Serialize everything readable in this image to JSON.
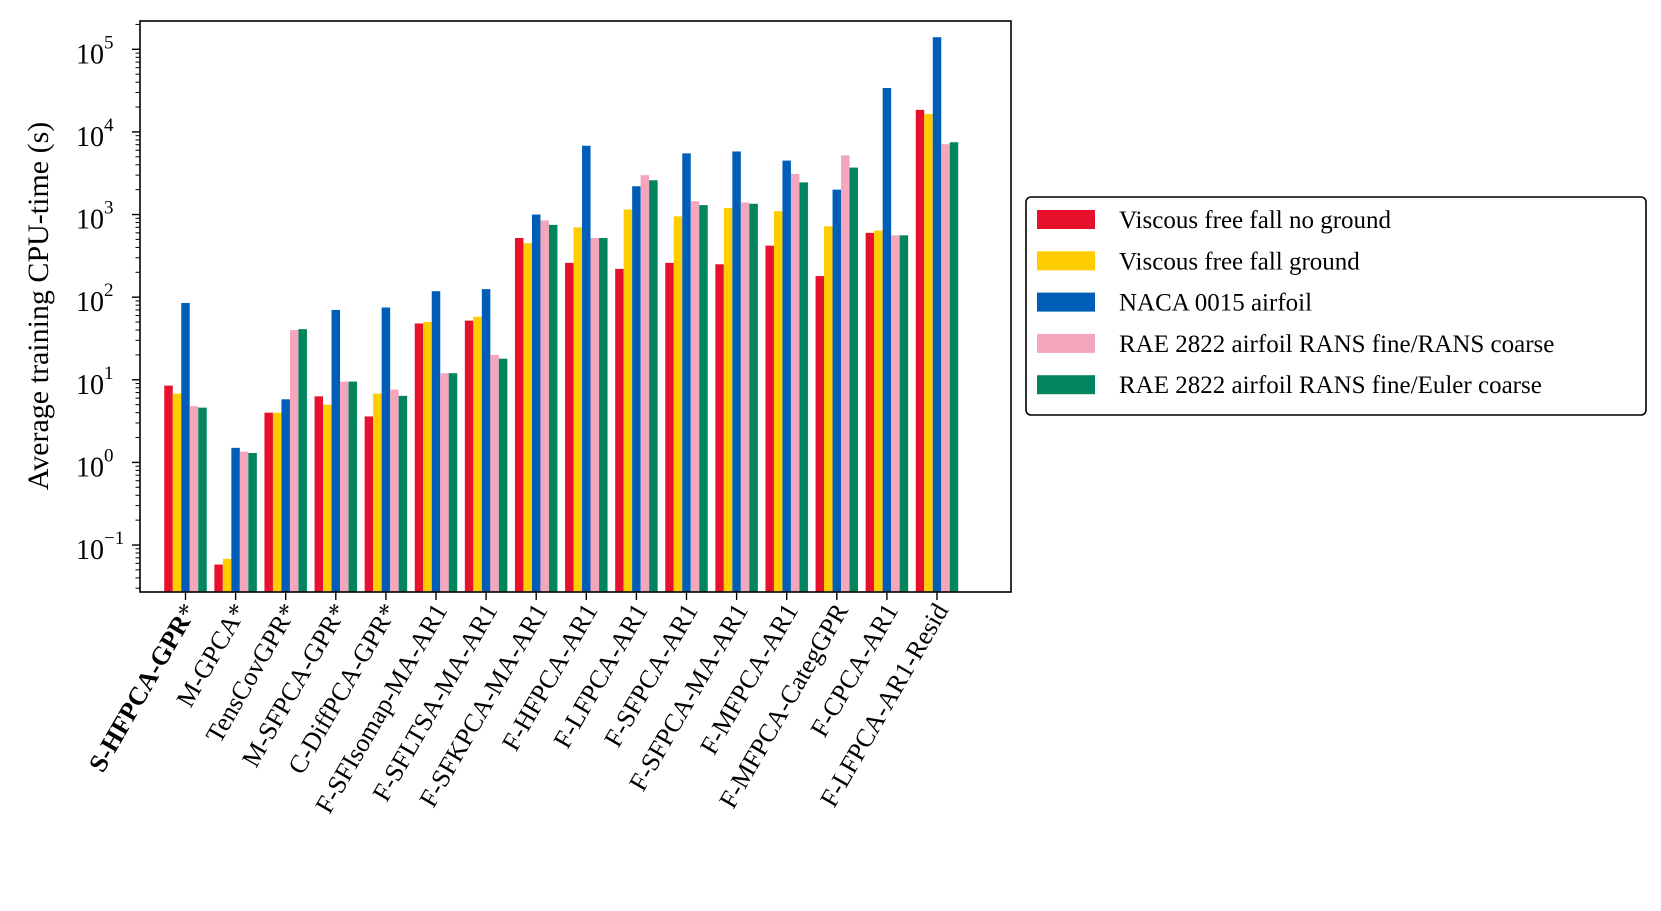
{
  "chart_data": {
    "type": "bar",
    "scale": "log",
    "title": "",
    "xlabel": "",
    "ylabel": "Average training CPU-time (s)",
    "ylim": [
      0.027,
      220000
    ],
    "yticks": [
      {
        "value": 0.1,
        "base": "10",
        "exp": "−1"
      },
      {
        "value": 1,
        "base": "10",
        "exp": "0"
      },
      {
        "value": 10,
        "base": "10",
        "exp": "1"
      },
      {
        "value": 100,
        "base": "10",
        "exp": "2"
      },
      {
        "value": 1000,
        "base": "10",
        "exp": "3"
      },
      {
        "value": 10000,
        "base": "10",
        "exp": "4"
      },
      {
        "value": 100000,
        "base": "10",
        "exp": "5"
      }
    ],
    "categories": [
      {
        "label": "S-HFPCA-GPR",
        "suffix": "*",
        "bold": true
      },
      {
        "label": "M-GPCA",
        "suffix": "*",
        "bold": false
      },
      {
        "label": "TensCovGPR",
        "suffix": "*",
        "bold": false
      },
      {
        "label": "M-SFPCA-GPR",
        "suffix": "*",
        "bold": false
      },
      {
        "label": "C-DiffPCA-GPR",
        "suffix": "*",
        "bold": false
      },
      {
        "label": "F-SFIsomap-MA-AR1",
        "suffix": "",
        "bold": false
      },
      {
        "label": "F-SFLTSA-MA-AR1",
        "suffix": "",
        "bold": false
      },
      {
        "label": "F-SFKPCA-MA-AR1",
        "suffix": "",
        "bold": false
      },
      {
        "label": "F-HFPCA-AR1",
        "suffix": "",
        "bold": false
      },
      {
        "label": "F-LFPCA-AR1",
        "suffix": "",
        "bold": false
      },
      {
        "label": "F-SFPCA-AR1",
        "suffix": "",
        "bold": false
      },
      {
        "label": "F-SFPCA-MA-AR1",
        "suffix": "",
        "bold": false
      },
      {
        "label": "F-MFPCA-AR1",
        "suffix": "",
        "bold": false
      },
      {
        "label": "F-MFPCA-CategGPR",
        "suffix": "",
        "bold": false
      },
      {
        "label": "F-CPCA-AR1",
        "suffix": "",
        "bold": false
      },
      {
        "label": "F-LFPCA-AR1-Resid",
        "suffix": "",
        "bold": false
      }
    ],
    "series": [
      {
        "name": "Viscous free fall no ground",
        "color": "#e8112d",
        "values": [
          8.5,
          0.058,
          4.0,
          6.3,
          3.6,
          48,
          52,
          520,
          260,
          220,
          260,
          250,
          420,
          180,
          600,
          18500
        ]
      },
      {
        "name": "Viscous free fall ground",
        "color": "#ffcc00",
        "values": [
          6.8,
          0.068,
          4.0,
          5.0,
          6.8,
          50,
          58,
          450,
          700,
          1150,
          950,
          1200,
          1100,
          720,
          640,
          16500
        ]
      },
      {
        "name": "NACA 0015 airfoil",
        "color": "#005eb8",
        "values": [
          85,
          1.5,
          5.8,
          70,
          75,
          118,
          125,
          1000,
          6800,
          2200,
          5500,
          5800,
          4500,
          2000,
          34000,
          140000
        ]
      },
      {
        "name": "RAE 2822 airfoil RANS fine/RANS coarse",
        "color": "#f4a6bc",
        "values": [
          4.8,
          1.35,
          40,
          9.5,
          7.6,
          12,
          20,
          850,
          520,
          3000,
          1450,
          1400,
          3100,
          5200,
          560,
          7100
        ]
      },
      {
        "name": "RAE 2822 airfoil RANS fine/Euler coarse",
        "color": "#00855e",
        "values": [
          4.6,
          1.3,
          41,
          9.5,
          6.4,
          12,
          18,
          750,
          520,
          2600,
          1300,
          1350,
          2450,
          3700,
          560,
          7500
        ]
      }
    ],
    "legend_position": "right"
  }
}
